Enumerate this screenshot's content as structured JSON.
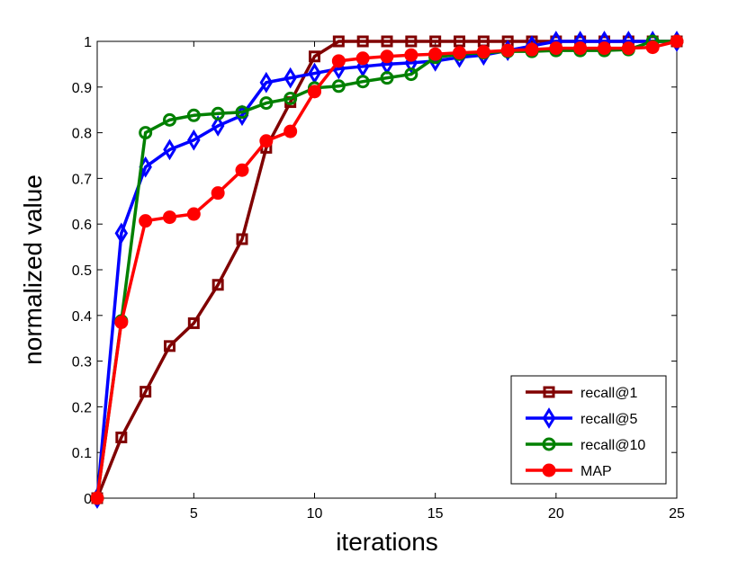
{
  "chart_data": {
    "type": "line",
    "title": "",
    "xlabel": "iterations",
    "ylabel": "normalized value",
    "xlim": [
      1,
      25
    ],
    "ylim": [
      0,
      1
    ],
    "xticks": [
      5,
      10,
      15,
      20,
      25
    ],
    "yticks": [
      0,
      0.1,
      0.2,
      0.3,
      0.4,
      0.5,
      0.6,
      0.7,
      0.8,
      0.9,
      1
    ],
    "ytick_labels": [
      "0",
      "0.1",
      "0.2",
      "0.3",
      "0.4",
      "0.5",
      "0.6",
      "0.7",
      "0.8",
      "0.9",
      "1"
    ],
    "grid": false,
    "legend_position": "bottom-right",
    "x": [
      1,
      2,
      3,
      4,
      5,
      6,
      7,
      8,
      9,
      10,
      11,
      12,
      13,
      14,
      15,
      16,
      17,
      18,
      19,
      20,
      21,
      22,
      23,
      24,
      25
    ],
    "series": [
      {
        "name": "recall@1",
        "color": "#800000",
        "marker": "square",
        "values": [
          0,
          0.133,
          0.233,
          0.333,
          0.383,
          0.467,
          0.567,
          0.767,
          0.867,
          0.967,
          1,
          1,
          1,
          1,
          1,
          1,
          1,
          1,
          1,
          1,
          1,
          1,
          1,
          1,
          1
        ]
      },
      {
        "name": "recall@5",
        "color": "#0000ff",
        "marker": "diamond",
        "values": [
          0,
          0.58,
          0.725,
          0.763,
          0.784,
          0.815,
          0.838,
          0.91,
          0.92,
          0.93,
          0.94,
          0.945,
          0.95,
          0.953,
          0.957,
          0.965,
          0.97,
          0.98,
          0.99,
          1,
          1,
          1,
          1,
          1,
          1
        ]
      },
      {
        "name": "recall@10",
        "color": "#008000",
        "marker": "circle",
        "values": [
          0,
          0.388,
          0.8,
          0.828,
          0.838,
          0.842,
          0.845,
          0.865,
          0.875,
          0.898,
          0.902,
          0.912,
          0.92,
          0.928,
          0.965,
          0.972,
          0.975,
          0.978,
          0.978,
          0.98,
          0.98,
          0.98,
          0.982,
          1,
          1
        ]
      },
      {
        "name": "MAP",
        "color": "#ff0000",
        "marker": "filled-circle",
        "values": [
          0,
          0.385,
          0.607,
          0.615,
          0.622,
          0.668,
          0.718,
          0.782,
          0.803,
          0.89,
          0.957,
          0.963,
          0.967,
          0.97,
          0.972,
          0.975,
          0.977,
          0.98,
          0.982,
          0.985,
          0.985,
          0.985,
          0.985,
          0.987,
          1
        ]
      }
    ]
  }
}
